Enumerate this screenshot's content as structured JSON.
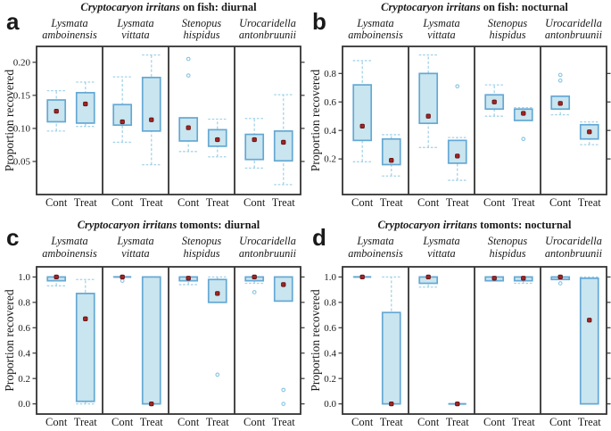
{
  "figure_name": "Cryptocaryon irritans recovery boxplots",
  "ylabel": "Proportion recovered",
  "group_labels": [
    "Cont",
    "Treat"
  ],
  "colors": {
    "box_fill": "#c9e5ef",
    "box_stroke": "#64a8d4",
    "whisker": "#a4d4e8",
    "outlier": "#86c3e2",
    "mean_fill": "#a02525",
    "mean_stroke": "#641111",
    "frame": "#333333",
    "text": "#1a1a1a"
  },
  "chart_data": [
    {
      "type": "boxplot",
      "panel_letter": "a",
      "title": {
        "italic": "Cryptocaryon irritans",
        "rest": " on fish: diurnal"
      },
      "ylabel": "Proportion recovered",
      "species": [
        {
          "line1": "Lysmata",
          "line2": "amboinensis"
        },
        {
          "line1": "Lysmata",
          "line2": "vittata"
        },
        {
          "line1": "Stenopus",
          "line2": "hispidus"
        },
        {
          "line1": "Urocaridella",
          "line2": "antonbruunii"
        }
      ],
      "groups": [
        "Cont",
        "Treat"
      ],
      "ylim": [
        0.0,
        0.224
      ],
      "yticks": [
        0.05,
        0.1,
        0.15,
        0.2
      ],
      "ytick_labels": [
        "0.05",
        "0.10",
        "0.15",
        "0.20"
      ],
      "boxes": [
        {
          "sp": 0,
          "grp": "Cont",
          "lo": 0.096,
          "q1": 0.11,
          "q3": 0.143,
          "hi": 0.157,
          "mean": 0.126,
          "out": []
        },
        {
          "sp": 0,
          "grp": "Treat",
          "lo": 0.103,
          "q1": 0.108,
          "q3": 0.154,
          "hi": 0.17,
          "mean": 0.137,
          "out": []
        },
        {
          "sp": 1,
          "grp": "Cont",
          "lo": 0.079,
          "q1": 0.105,
          "q3": 0.136,
          "hi": 0.178,
          "mean": 0.11,
          "out": []
        },
        {
          "sp": 1,
          "grp": "Treat",
          "lo": 0.045,
          "q1": 0.096,
          "q3": 0.177,
          "hi": 0.211,
          "mean": 0.113,
          "out": []
        },
        {
          "sp": 2,
          "grp": "Cont",
          "lo": 0.065,
          "q1": 0.081,
          "q3": 0.116,
          "hi": 0.116,
          "mean": 0.101,
          "out": [
            0.18,
            0.205
          ]
        },
        {
          "sp": 2,
          "grp": "Treat",
          "lo": 0.057,
          "q1": 0.073,
          "q3": 0.098,
          "hi": 0.114,
          "mean": 0.083,
          "out": []
        },
        {
          "sp": 3,
          "grp": "Cont",
          "lo": 0.04,
          "q1": 0.053,
          "q3": 0.091,
          "hi": 0.115,
          "mean": 0.083,
          "out": []
        },
        {
          "sp": 3,
          "grp": "Treat",
          "lo": 0.015,
          "q1": 0.051,
          "q3": 0.096,
          "hi": 0.151,
          "mean": 0.079,
          "out": []
        }
      ]
    },
    {
      "type": "boxplot",
      "panel_letter": "b",
      "title": {
        "italic": "Cryptocaryon irritans",
        "rest": " on fish: nocturnal"
      },
      "ylabel": "Proportion recovered",
      "species": [
        {
          "line1": "Lysmata",
          "line2": "amboinensis"
        },
        {
          "line1": "Lysmata",
          "line2": "vittata"
        },
        {
          "line1": "Stenopus",
          "line2": "hispidus"
        },
        {
          "line1": "Urocaridella",
          "line2": "antonbruunii"
        }
      ],
      "groups": [
        "Cont",
        "Treat"
      ],
      "ylim": [
        -0.05,
        0.99
      ],
      "yticks": [
        0.2,
        0.4,
        0.6,
        0.8
      ],
      "ytick_labels": [
        "0.2",
        "0.4",
        "0.6",
        "0.8"
      ],
      "boxes": [
        {
          "sp": 0,
          "grp": "Cont",
          "lo": 0.18,
          "q1": 0.33,
          "q3": 0.72,
          "hi": 0.89,
          "mean": 0.43,
          "out": []
        },
        {
          "sp": 0,
          "grp": "Treat",
          "lo": 0.08,
          "q1": 0.16,
          "q3": 0.34,
          "hi": 0.37,
          "mean": 0.19,
          "out": []
        },
        {
          "sp": 1,
          "grp": "Cont",
          "lo": 0.28,
          "q1": 0.45,
          "q3": 0.8,
          "hi": 0.93,
          "mean": 0.5,
          "out": []
        },
        {
          "sp": 1,
          "grp": "Treat",
          "lo": 0.05,
          "q1": 0.17,
          "q3": 0.33,
          "hi": 0.35,
          "mean": 0.22,
          "out": [
            0.71
          ]
        },
        {
          "sp": 2,
          "grp": "Cont",
          "lo": 0.5,
          "q1": 0.55,
          "q3": 0.65,
          "hi": 0.72,
          "mean": 0.6,
          "out": []
        },
        {
          "sp": 2,
          "grp": "Treat",
          "lo": 0.47,
          "q1": 0.47,
          "q3": 0.55,
          "hi": 0.56,
          "mean": 0.52,
          "out": [
            0.34
          ]
        },
        {
          "sp": 3,
          "grp": "Cont",
          "lo": 0.51,
          "q1": 0.55,
          "q3": 0.64,
          "hi": 0.64,
          "mean": 0.59,
          "out": [
            0.75,
            0.79
          ]
        },
        {
          "sp": 3,
          "grp": "Treat",
          "lo": 0.3,
          "q1": 0.34,
          "q3": 0.44,
          "hi": 0.46,
          "mean": 0.39,
          "out": []
        }
      ]
    },
    {
      "type": "boxplot",
      "panel_letter": "c",
      "title": {
        "italic": "Cryptocaryon irritans",
        "rest": " tomonts: diurnal"
      },
      "ylabel": "Proportion recovered",
      "species": [
        {
          "line1": "Lysmata",
          "line2": "amboinensis"
        },
        {
          "line1": "Lysmata",
          "line2": "vittata"
        },
        {
          "line1": "Stenopus",
          "line2": "hispidus"
        },
        {
          "line1": "Urocaridella",
          "line2": "antonbruunii"
        }
      ],
      "groups": [
        "Cont",
        "Treat"
      ],
      "ylim": [
        -0.08,
        1.08
      ],
      "yticks": [
        0.0,
        0.2,
        0.4,
        0.6,
        0.8,
        1.0
      ],
      "ytick_labels": [
        "0.0",
        "0.2",
        "0.4",
        "0.6",
        "0.8",
        "1.0"
      ],
      "boxes": [
        {
          "sp": 0,
          "grp": "Cont",
          "lo": 0.93,
          "q1": 0.97,
          "q3": 1.0,
          "hi": 1.0,
          "mean": 1.0,
          "out": []
        },
        {
          "sp": 0,
          "grp": "Treat",
          "lo": 0.0,
          "q1": 0.02,
          "q3": 0.87,
          "hi": 0.98,
          "mean": 0.67,
          "out": []
        },
        {
          "sp": 1,
          "grp": "Cont",
          "lo": 1.0,
          "q1": 1.0,
          "q3": 1.0,
          "hi": 1.0,
          "mean": 1.0,
          "out": [
            0.97
          ]
        },
        {
          "sp": 1,
          "grp": "Treat",
          "lo": 0.0,
          "q1": 0.0,
          "q3": 1.0,
          "hi": 1.0,
          "mean": 0.0,
          "out": []
        },
        {
          "sp": 2,
          "grp": "Cont",
          "lo": 0.94,
          "q1": 0.97,
          "q3": 1.0,
          "hi": 1.0,
          "mean": 0.99,
          "out": []
        },
        {
          "sp": 2,
          "grp": "Treat",
          "lo": 0.8,
          "q1": 0.8,
          "q3": 0.98,
          "hi": 1.0,
          "mean": 0.87,
          "out": [
            0.23
          ]
        },
        {
          "sp": 3,
          "grp": "Cont",
          "lo": 0.95,
          "q1": 0.97,
          "q3": 1.0,
          "hi": 1.0,
          "mean": 1.0,
          "out": [
            0.88
          ]
        },
        {
          "sp": 3,
          "grp": "Treat",
          "lo": 0.81,
          "q1": 0.81,
          "q3": 1.0,
          "hi": 1.0,
          "mean": 0.94,
          "out": [
            0.11,
            0.0
          ]
        }
      ]
    },
    {
      "type": "boxplot",
      "panel_letter": "d",
      "title": {
        "italic": "Cryptocaryon irritans",
        "rest": " tomonts: nocturnal"
      },
      "ylabel": "Proportion recovered",
      "species": [
        {
          "line1": "Lysmata",
          "line2": "amboinensis"
        },
        {
          "line1": "Lysmata",
          "line2": "vittata"
        },
        {
          "line1": "Stenopus",
          "line2": "hispidus"
        },
        {
          "line1": "Urocaridella",
          "line2": "antonbruunii"
        }
      ],
      "groups": [
        "Cont",
        "Treat"
      ],
      "ylim": [
        -0.08,
        1.08
      ],
      "yticks": [
        0.0,
        0.2,
        0.4,
        0.6,
        0.8,
        1.0
      ],
      "ytick_labels": [
        "0.0",
        "0.2",
        "0.4",
        "0.6",
        "0.8",
        "1.0"
      ],
      "boxes": [
        {
          "sp": 0,
          "grp": "Cont",
          "lo": 1.0,
          "q1": 1.0,
          "q3": 1.0,
          "hi": 1.0,
          "mean": 1.0,
          "out": []
        },
        {
          "sp": 0,
          "grp": "Treat",
          "lo": 0.0,
          "q1": 0.0,
          "q3": 0.72,
          "hi": 1.0,
          "mean": 0.0,
          "out": []
        },
        {
          "sp": 1,
          "grp": "Cont",
          "lo": 0.92,
          "q1": 0.95,
          "q3": 1.0,
          "hi": 1.0,
          "mean": 1.0,
          "out": []
        },
        {
          "sp": 1,
          "grp": "Treat",
          "lo": 0.0,
          "q1": 0.0,
          "q3": 0.0,
          "hi": 0.0,
          "mean": 0.0,
          "out": []
        },
        {
          "sp": 2,
          "grp": "Cont",
          "lo": 0.97,
          "q1": 0.97,
          "q3": 1.0,
          "hi": 1.0,
          "mean": 0.99,
          "out": []
        },
        {
          "sp": 2,
          "grp": "Treat",
          "lo": 0.95,
          "q1": 0.97,
          "q3": 1.0,
          "hi": 1.0,
          "mean": 0.99,
          "out": []
        },
        {
          "sp": 3,
          "grp": "Cont",
          "lo": 0.98,
          "q1": 0.98,
          "q3": 1.0,
          "hi": 1.0,
          "mean": 1.0,
          "out": [
            0.95
          ]
        },
        {
          "sp": 3,
          "grp": "Treat",
          "lo": 0.0,
          "q1": 0.0,
          "q3": 0.99,
          "hi": 1.0,
          "mean": 0.66,
          "out": []
        }
      ]
    }
  ]
}
